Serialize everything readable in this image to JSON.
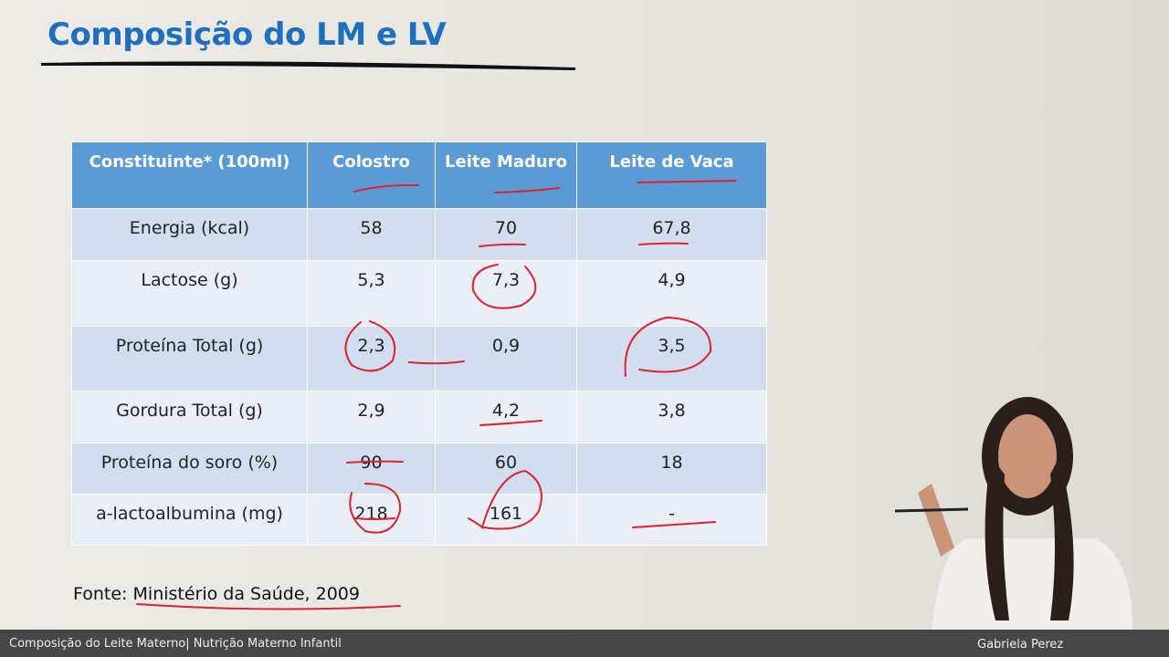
{
  "header": {
    "title": "Composição do LM e LV"
  },
  "table": {
    "columns": [
      "Constituinte* (100ml)",
      "Colostro",
      "Leite Maduro",
      "Leite de Vaca"
    ],
    "rows": [
      [
        "Energia (kcal)",
        "58",
        "70",
        "67,8"
      ],
      [
        "Lactose (g)",
        "5,3",
        "7,3",
        "4,9"
      ],
      [
        "Proteína Total (g)",
        "2,3",
        "0,9",
        "3,5"
      ],
      [
        "Gordura Total (g)",
        "2,9",
        "4,2",
        "3,8"
      ],
      [
        "Proteína do soro (%)",
        "90",
        "60",
        "18"
      ],
      [
        "a-lactoalbumina (mg)",
        "218",
        "161",
        "-"
      ]
    ]
  },
  "source": {
    "prefix": "Fonte:",
    "reference": "Ministério da Saúde, 2009"
  },
  "footer": {
    "course": "Composição do Leite Materno| Nutrição Materno Infantil",
    "presenter": "Gabriela Perez"
  }
}
